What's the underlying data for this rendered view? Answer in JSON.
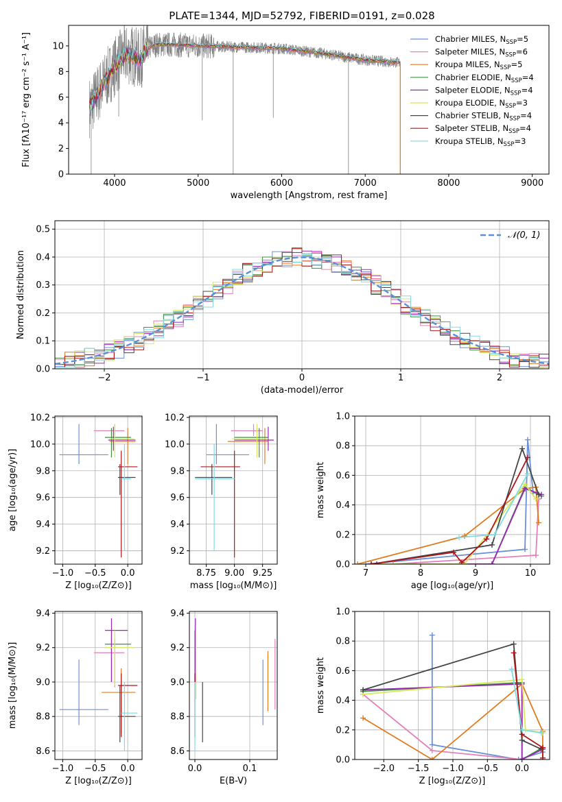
{
  "colors": {
    "chabrier_miles": "#6a8fd8",
    "salpeter_miles": "#e67eb8",
    "kroupa_miles": "#e07b1e",
    "chabrier_elodie": "#3f8f3f",
    "salpeter_elodie": "#9b27b5",
    "kroupa_elodie": "#d8e85a",
    "chabrier_stelib": "#444444",
    "salpeter_stelib": "#b01515",
    "kroupa_stelib": "#7fdbe3",
    "data": "#808080",
    "gaussian": "#5b8fd8"
  },
  "chart_data": [
    {
      "id": "spectrum",
      "type": "line",
      "title": "PLATE=1344, MJD=52792, FIBERID=0191, z=0.028",
      "xlabel": "wavelength [Angstrom, rest frame]",
      "ylabel": "Flux [fλ10⁻¹⁷ erg cm⁻² s⁻¹ A⁻¹]",
      "xlim": [
        3450,
        9200
      ],
      "ylim": [
        0,
        11.6
      ],
      "xticks": [
        4000,
        5000,
        6000,
        7000,
        8000,
        9000
      ],
      "yticks": [
        0,
        2,
        4,
        6,
        8,
        10
      ],
      "grid": false,
      "legend_position": "top-right",
      "legend": [
        {
          "label": "Chabrier MILES, N",
          "sub": "SSP",
          "tail": "=5",
          "color_key": "chabrier_miles"
        },
        {
          "label": "Salpeter MILES, N",
          "sub": "SSP",
          "tail": "=6",
          "color_key": "salpeter_miles"
        },
        {
          "label": "Kroupa MILES, N",
          "sub": "SSP",
          "tail": "=5",
          "color_key": "kroupa_miles"
        },
        {
          "label": "Chabrier ELODIE, N",
          "sub": "SSP",
          "tail": "=4",
          "color_key": "chabrier_elodie"
        },
        {
          "label": "Salpeter ELODIE, N",
          "sub": "SSP",
          "tail": "=4",
          "color_key": "salpeter_elodie"
        },
        {
          "label": "Kroupa ELODIE, N",
          "sub": "SSP",
          "tail": "=3",
          "color_key": "kroupa_elodie"
        },
        {
          "label": "Chabrier STELIB, N",
          "sub": "SSP",
          "tail": "=4",
          "color_key": "chabrier_stelib"
        },
        {
          "label": "Salpeter STELIB, N",
          "sub": "SSP",
          "tail": "=4",
          "color_key": "salpeter_stelib"
        },
        {
          "label": "Kroupa STELIB, N",
          "sub": "SSP",
          "tail": "=3",
          "color_key": "kroupa_stelib"
        }
      ],
      "continuum": {
        "x": [
          3700,
          3800,
          3900,
          4000,
          4100,
          4200,
          4300,
          4400,
          4500,
          4700,
          5000,
          5500,
          6000,
          6500,
          7000,
          7200,
          7400,
          7600,
          7800,
          8000,
          8200,
          8400,
          8600,
          8800,
          9000
        ],
        "y": [
          5.2,
          6.3,
          7.4,
          8.4,
          9.2,
          9.3,
          8.9,
          9.8,
          10.1,
          10.1,
          10.0,
          9.9,
          9.8,
          9.4,
          8.9,
          8.8,
          8.7,
          8.8,
          8.7,
          8.5,
          8.4,
          8.3,
          8.1,
          7.9,
          7.6
        ]
      },
      "model_range": [
        3700,
        7420
      ],
      "data_range": [
        3700,
        7420
      ]
    },
    {
      "id": "residuals",
      "type": "histogram",
      "xlabel": "(data-model)/error",
      "ylabel": "Normed distribution",
      "xlim": [
        -2.5,
        2.5
      ],
      "ylim": [
        0,
        0.53
      ],
      "xticks": [
        -2,
        -1,
        0,
        1,
        2
      ],
      "yticks": [
        0.0,
        0.1,
        0.2,
        0.3,
        0.4,
        0.5
      ],
      "grid": true,
      "legend_position": "top-right",
      "legend": [
        {
          "label": "𝒩(0, 1)",
          "color_key": "gaussian"
        }
      ],
      "bin_width": 0.1,
      "bin_start": -2.5,
      "series_keys": [
        "chabrier_miles",
        "salpeter_miles",
        "kroupa_miles",
        "chabrier_elodie",
        "salpeter_elodie",
        "kroupa_elodie",
        "chabrier_stelib",
        "salpeter_stelib",
        "kroupa_stelib"
      ]
    },
    {
      "id": "age_vs_Z",
      "type": "errorbar",
      "xlabel": "Z [log₁₀(Z/Z⊙)]",
      "ylabel": "age  [log₁₀(age/yr)]",
      "xlim": [
        -1.12,
        0.22
      ],
      "ylim": [
        9.1,
        10.21
      ],
      "xticks": [
        -1.0,
        -0.5,
        0.0
      ],
      "yticks": [
        9.2,
        9.4,
        9.6,
        9.8,
        10.0,
        10.2
      ],
      "grid": true,
      "points": [
        {
          "c": "chabrier_miles",
          "x": -0.75,
          "xe": [
            -1.05,
            -0.3
          ],
          "y": 9.92,
          "ye": [
            9.85,
            10.15
          ]
        },
        {
          "c": "salpeter_miles",
          "x": -0.2,
          "xe": [
            -0.52,
            -0.05
          ],
          "y": 10.1,
          "ye": [
            10.06,
            10.15
          ]
        },
        {
          "c": "kroupa_miles",
          "x": 0.0,
          "xe": [
            -0.28,
            0.12
          ],
          "y": 10.02,
          "ye": [
            9.85,
            10.12
          ]
        },
        {
          "c": "chabrier_elodie",
          "x": -0.25,
          "xe": [
            -0.35,
            0.05
          ],
          "y": 10.05,
          "ye": [
            9.9,
            10.12
          ]
        },
        {
          "c": "salpeter_elodie",
          "x": -0.22,
          "xe": [
            -0.3,
            0.12
          ],
          "y": 10.03,
          "ye": [
            9.95,
            10.13
          ]
        },
        {
          "c": "kroupa_elodie",
          "x": -0.2,
          "xe": [
            -0.28,
            0.1
          ],
          "y": 10.04,
          "ye": [
            9.9,
            10.15
          ]
        },
        {
          "c": "chabrier_stelib",
          "x": -0.12,
          "xe": [
            -0.15,
            0.12
          ],
          "y": 9.75,
          "ye": [
            9.62,
            9.85
          ]
        },
        {
          "c": "salpeter_stelib",
          "x": -0.1,
          "xe": [
            -0.15,
            0.15
          ],
          "y": 9.83,
          "ye": [
            9.15,
            9.95
          ]
        },
        {
          "c": "kroupa_stelib",
          "x": -0.05,
          "xe": [
            -0.1,
            0.05
          ],
          "y": 9.74,
          "ye": [
            9.2,
            10.0
          ]
        }
      ]
    },
    {
      "id": "age_vs_mass",
      "type": "errorbar",
      "xlabel": "mass [log₁₀(M/M⊙)]",
      "ylabel": "",
      "xlim": [
        8.6,
        9.38
      ],
      "ylim": [
        9.1,
        10.21
      ],
      "xticks": [
        8.75,
        9.0,
        9.25
      ],
      "yticks": [
        9.2,
        9.4,
        9.6,
        9.8,
        10.0,
        10.2
      ],
      "grid": true,
      "points": [
        {
          "c": "chabrier_miles",
          "x": 8.84,
          "xe": [
            8.75,
            9.13
          ],
          "y": 9.92,
          "ye": [
            9.85,
            10.15
          ]
        },
        {
          "c": "salpeter_miles",
          "x": 9.17,
          "xe": [
            8.97,
            9.25
          ],
          "y": 10.1,
          "ye": [
            10.06,
            10.15
          ]
        },
        {
          "c": "kroupa_miles",
          "x": 9.27,
          "xe": [
            8.94,
            9.3
          ],
          "y": 10.02,
          "ye": [
            9.85,
            10.12
          ]
        },
        {
          "c": "chabrier_elodie",
          "x": 9.22,
          "xe": [
            9.0,
            9.3
          ],
          "y": 10.05,
          "ye": [
            9.9,
            10.12
          ]
        },
        {
          "c": "salpeter_elodie",
          "x": 9.3,
          "xe": [
            9.0,
            9.35
          ],
          "y": 10.03,
          "ye": [
            9.95,
            10.13
          ]
        },
        {
          "c": "kroupa_elodie",
          "x": 9.2,
          "xe": [
            8.98,
            9.3
          ],
          "y": 10.04,
          "ye": [
            9.9,
            10.15
          ]
        },
        {
          "c": "chabrier_stelib",
          "x": 8.8,
          "xe": [
            8.65,
            8.98
          ],
          "y": 9.75,
          "ye": [
            9.62,
            9.85
          ]
        },
        {
          "c": "salpeter_stelib",
          "x": 9.0,
          "xe": [
            8.7,
            9.05
          ],
          "y": 9.83,
          "ye": [
            9.15,
            9.95
          ]
        },
        {
          "c": "kroupa_stelib",
          "x": 8.82,
          "xe": [
            8.65,
            9.0
          ],
          "y": 9.74,
          "ye": [
            9.2,
            10.0
          ]
        }
      ]
    },
    {
      "id": "mass_weight_vs_age",
      "type": "line",
      "xlabel": "age  [log₁₀(age/yr)]",
      "ylabel": "mass weight",
      "xlim": [
        6.8,
        10.35
      ],
      "ylim": [
        0,
        1.0
      ],
      "xticks": [
        7,
        8,
        9,
        10
      ],
      "yticks": [
        0.0,
        0.2,
        0.4,
        0.6,
        0.8,
        1.0
      ],
      "grid": true,
      "series": [
        {
          "c": "chabrier_miles",
          "x": [
            7.0,
            9.9,
            9.95,
            10.05
          ],
          "y": [
            0.0,
            0.1,
            0.84,
            0.48
          ]
        },
        {
          "c": "salpeter_miles",
          "x": [
            7.5,
            10.1,
            10.15
          ],
          "y": [
            0.0,
            0.06,
            0.44
          ]
        },
        {
          "c": "kroupa_miles",
          "x": [
            6.85,
            8.8,
            9.9,
            10.1,
            10.15
          ],
          "y": [
            0.0,
            0.19,
            0.51,
            0.52,
            0.28
          ]
        },
        {
          "c": "chabrier_elodie",
          "x": [
            7.2,
            9.3,
            9.9,
            10.2
          ],
          "y": [
            0.0,
            0.0,
            0.52,
            0.46
          ]
        },
        {
          "c": "salpeter_elodie",
          "x": [
            7.2,
            9.3,
            9.9,
            10.2
          ],
          "y": [
            0.0,
            0.0,
            0.51,
            0.47
          ]
        },
        {
          "c": "kroupa_elodie",
          "x": [
            7.3,
            8.8,
            9.9,
            10.1
          ],
          "y": [
            0.0,
            0.0,
            0.54,
            0.44
          ]
        },
        {
          "c": "chabrier_stelib",
          "x": [
            7.1,
            9.3,
            9.85,
            10.15
          ],
          "y": [
            0.0,
            0.13,
            0.78,
            0.47
          ]
        },
        {
          "c": "salpeter_stelib",
          "x": [
            7.1,
            8.6,
            8.75,
            9.2,
            9.95
          ],
          "y": [
            0.0,
            0.08,
            0.01,
            0.17,
            0.72
          ]
        },
        {
          "c": "kroupa_stelib",
          "x": [
            8.7,
            9.35,
            9.95
          ],
          "y": [
            0.18,
            0.2,
            0.61
          ]
        }
      ]
    },
    {
      "id": "mass_vs_Z",
      "type": "errorbar",
      "xlabel": "Z [log₁₀(Z/Z⊙)]",
      "ylabel": "mass [log₁₀(M/M⊙)]",
      "xlim": [
        -1.12,
        0.22
      ],
      "ylim": [
        8.55,
        9.41
      ],
      "xticks": [
        -1.0,
        -0.5,
        0.0
      ],
      "yticks": [
        8.6,
        8.8,
        9.0,
        9.2,
        9.4
      ],
      "grid": true,
      "points": [
        {
          "c": "chabrier_miles",
          "x": -0.75,
          "xe": [
            -1.05,
            -0.3
          ],
          "y": 8.84,
          "ye": [
            8.75,
            9.13
          ]
        },
        {
          "c": "salpeter_miles",
          "x": -0.2,
          "xe": [
            -0.52,
            -0.05
          ],
          "y": 9.17,
          "ye": [
            8.97,
            9.25
          ]
        },
        {
          "c": "kroupa_miles",
          "x": -0.1,
          "xe": [
            -0.4,
            0.12
          ],
          "y": 8.94,
          "ye": [
            8.7,
            9.08
          ]
        },
        {
          "c": "chabrier_elodie",
          "x": -0.25,
          "xe": [
            -0.35,
            0.05
          ],
          "y": 9.22,
          "ye": [
            9.0,
            9.3
          ]
        },
        {
          "c": "salpeter_elodie",
          "x": -0.25,
          "xe": [
            -0.35,
            0.0
          ],
          "y": 9.3,
          "ye": [
            9.0,
            9.37
          ]
        },
        {
          "c": "kroupa_elodie",
          "x": -0.2,
          "xe": [
            -0.35,
            0.1
          ],
          "y": 9.2,
          "ye": [
            8.98,
            9.3
          ]
        },
        {
          "c": "chabrier_stelib",
          "x": -0.12,
          "xe": [
            -0.15,
            0.12
          ],
          "y": 8.8,
          "ye": [
            8.65,
            8.98
          ]
        },
        {
          "c": "salpeter_stelib",
          "x": -0.1,
          "xe": [
            -0.15,
            0.15
          ],
          "y": 8.98,
          "ye": [
            8.68,
            9.05
          ]
        },
        {
          "c": "kroupa_stelib",
          "x": -0.05,
          "xe": [
            -0.1,
            0.15
          ],
          "y": 8.82,
          "ye": [
            8.6,
            9.0
          ]
        }
      ]
    },
    {
      "id": "mass_vs_EBV",
      "type": "errorbar",
      "xlabel": "E(B-V)",
      "ylabel": "",
      "xlim": [
        -0.01,
        0.15
      ],
      "ylim": [
        8.55,
        9.41
      ],
      "xticks": [
        0.0,
        0.1
      ],
      "yticks": [
        8.6,
        8.8,
        9.0,
        9.2,
        9.4
      ],
      "grid": true,
      "points": [
        {
          "c": "chabrier_miles",
          "x": 0.124,
          "xe": [
            0.124,
            0.124
          ],
          "y": 8.94,
          "ye": [
            8.75,
            9.13
          ]
        },
        {
          "c": "salpeter_miles",
          "x": 0.146,
          "xe": [
            0.146,
            0.146
          ],
          "y": 9.04,
          "ye": [
            8.84,
            9.25
          ]
        },
        {
          "c": "kroupa_miles",
          "x": 0.133,
          "xe": [
            0.133,
            0.133
          ],
          "y": 9.0,
          "ye": [
            8.83,
            9.18
          ]
        },
        {
          "c": "chabrier_elodie",
          "x": 0.0,
          "xe": [
            0.0,
            0.0
          ],
          "y": 9.15,
          "ye": [
            9.0,
            9.3
          ]
        },
        {
          "c": "salpeter_elodie",
          "x": 0.001,
          "xe": [
            0.001,
            0.001
          ],
          "y": 9.18,
          "ye": [
            9.0,
            9.37
          ]
        },
        {
          "c": "kroupa_elodie",
          "x": 0.002,
          "xe": [
            0.002,
            0.002
          ],
          "y": 9.1,
          "ye": [
            8.9,
            9.3
          ]
        },
        {
          "c": "chabrier_stelib",
          "x": 0.014,
          "xe": [
            0.014,
            0.014
          ],
          "y": 8.83,
          "ye": [
            8.65,
            9.0
          ]
        },
        {
          "c": "salpeter_stelib",
          "x": 0.0,
          "xe": [
            0.0,
            0.0
          ],
          "y": 8.85,
          "ye": [
            8.68,
            9.05
          ]
        },
        {
          "c": "kroupa_stelib",
          "x": 0.0,
          "xe": [
            0.0,
            0.0
          ],
          "y": 8.8,
          "ye": [
            8.6,
            9.0
          ]
        }
      ]
    },
    {
      "id": "mass_weight_vs_Z",
      "type": "line",
      "xlabel": "Z [log₁₀(Z/Z⊙)]",
      "ylabel": "mass weight",
      "xlim": [
        -2.42,
        0.4
      ],
      "ylim": [
        0,
        1.0
      ],
      "xticks": [
        -2.0,
        -1.5,
        -1.0,
        -0.5,
        0.0
      ],
      "yticks": [
        0.0,
        0.2,
        0.4,
        0.6,
        0.8,
        1.0
      ],
      "grid": true,
      "series": [
        {
          "c": "chabrier_miles",
          "x": [
            -1.3,
            -1.3,
            -0.05,
            0.3
          ],
          "y": [
            0.84,
            0.1,
            0.0,
            0.05
          ]
        },
        {
          "c": "salpeter_miles",
          "x": [
            -2.3,
            -1.3,
            0.0,
            0.3
          ],
          "y": [
            0.44,
            0.06,
            0.0,
            0.0
          ]
        },
        {
          "c": "kroupa_miles",
          "x": [
            -2.3,
            -1.3,
            0.0,
            0.3,
            0.3
          ],
          "y": [
            0.28,
            0.0,
            0.51,
            0.19,
            0.01
          ]
        },
        {
          "c": "chabrier_elodie",
          "x": [
            -2.3,
            0.0,
            0.0,
            0.3
          ],
          "y": [
            0.46,
            0.52,
            0.0,
            0.08
          ]
        },
        {
          "c": "salpeter_elodie",
          "x": [
            -2.3,
            0.0,
            0.0,
            0.3
          ],
          "y": [
            0.47,
            0.51,
            0.0,
            0.07
          ]
        },
        {
          "c": "kroupa_elodie",
          "x": [
            -2.3,
            0.0,
            0.05,
            0.3
          ],
          "y": [
            0.44,
            0.54,
            0.2,
            0.18
          ]
        },
        {
          "c": "chabrier_stelib",
          "x": [
            -2.3,
            -0.12,
            0.0,
            0.28
          ],
          "y": [
            0.47,
            0.78,
            0.13,
            0.07
          ]
        },
        {
          "c": "salpeter_stelib",
          "x": [
            -0.12,
            0.0,
            0.3,
            0.3
          ],
          "y": [
            0.72,
            0.17,
            0.08,
            0.01
          ]
        },
        {
          "c": "kroupa_stelib",
          "x": [
            -0.15,
            0.0,
            0.28
          ],
          "y": [
            0.61,
            0.2,
            0.18
          ]
        }
      ]
    }
  ]
}
